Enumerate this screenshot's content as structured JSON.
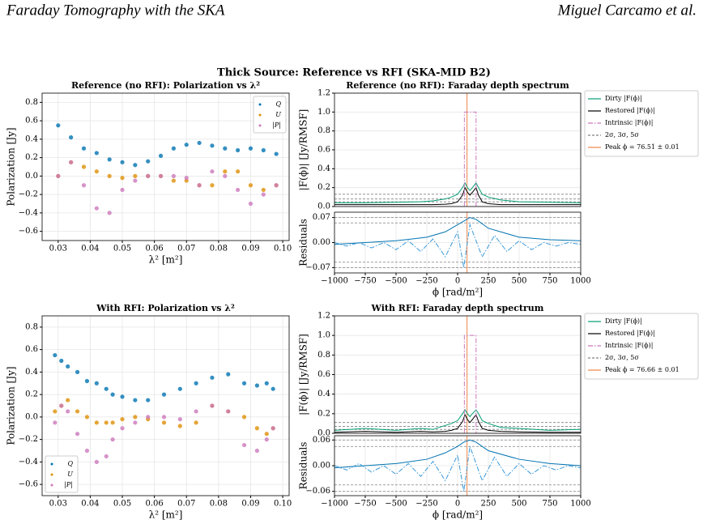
{
  "header": {
    "left": "Faraday Tomography with the SKA",
    "right": "Miguel Carcamo et al."
  },
  "figure_title": "Thick Source: Reference vs RFI (SKA-MID B2)",
  "chart_data": [
    {
      "type": "scatter",
      "title": "Reference (no RFI): Polarization vs λ²",
      "xlabel": "λ² [m²]",
      "ylabel": "Polarization [Jy]",
      "xlim": [
        0.025,
        0.102
      ],
      "ylim": [
        -0.7,
        0.9
      ],
      "xticks": [
        0.03,
        0.04,
        0.05,
        0.06,
        0.07,
        0.08,
        0.09,
        {
          "value": 0.1,
          "label": "0.10"
        }
      ],
      "yticks": [
        {
          "value": -0.6,
          "label": "−0.6"
        },
        {
          "value": -0.4,
          "label": "−0.4"
        },
        {
          "value": -0.2,
          "label": "−0.2"
        },
        {
          "value": 0,
          "label": "0.0"
        },
        0.2,
        0.4,
        0.6,
        0.8
      ],
      "grid": true,
      "legend": "upper right",
      "series": [
        {
          "name": "Q",
          "color": "#0173b2",
          "x": [
            0.03,
            0.034,
            0.038,
            0.042,
            0.046,
            0.05,
            0.054,
            0.058,
            0.062,
            0.066,
            0.07,
            0.074,
            0.078,
            0.082,
            0.086,
            0.09,
            0.094,
            0.098
          ],
          "values": [
            0.55,
            0.42,
            0.3,
            0.25,
            0.18,
            0.15,
            0.12,
            0.16,
            0.22,
            0.3,
            0.34,
            0.36,
            0.33,
            0.3,
            0.28,
            0.3,
            0.28,
            0.24
          ]
        },
        {
          "name": "U",
          "color": "#de8f05",
          "x": [
            0.03,
            0.034,
            0.038,
            0.042,
            0.046,
            0.05,
            0.054,
            0.058,
            0.062,
            0.066,
            0.07,
            0.074,
            0.078,
            0.082,
            0.086,
            0.09,
            0.094,
            0.098
          ],
          "values": [
            0.0,
            0.15,
            0.1,
            0.05,
            0.0,
            -0.02,
            0.0,
            0.0,
            0.0,
            -0.05,
            -0.05,
            -0.1,
            -0.1,
            0.05,
            0.05,
            -0.1,
            -0.15,
            -0.1
          ]
        },
        {
          "name": "|P|",
          "color": "#cc78bc",
          "x": [
            0.03,
            0.034,
            0.038,
            0.042,
            0.046,
            0.05,
            0.054,
            0.058,
            0.062,
            0.066,
            0.07,
            0.074,
            0.078,
            0.082,
            0.086,
            0.09,
            0.094,
            0.098
          ],
          "values": [
            0.0,
            0.15,
            -0.1,
            -0.35,
            -0.4,
            -0.15,
            -0.05,
            0.0,
            0.0,
            0.0,
            -0.02,
            -0.1,
            0.05,
            0.0,
            -0.15,
            -0.3,
            -0.2,
            -0.1
          ]
        }
      ]
    },
    {
      "type": "line",
      "title": "Reference (no RFI): Faraday depth spectrum",
      "ylabel": "|F(ϕ)| [Jy/RMSF]",
      "xlim": [
        -1000,
        1000
      ],
      "ylim": [
        0,
        1.2
      ],
      "yticks": [
        {
          "value": 0,
          "label": "0.0"
        },
        0.2,
        0.4,
        0.6,
        0.8,
        {
          "value": 1,
          "label": "1.0"
        },
        1.2
      ],
      "grid": true,
      "legend": "outside right",
      "series": [
        {
          "name": "Dirty |F(ϕ)|",
          "color": "#029e73",
          "x": [
            -1000,
            -750,
            -500,
            -300,
            -200,
            -100,
            -50,
            0,
            40,
            60,
            80,
            100,
            120,
            150,
            170,
            200,
            250,
            350,
            500,
            750,
            1000
          ],
          "values": [
            0.04,
            0.04,
            0.045,
            0.05,
            0.06,
            0.08,
            0.1,
            0.13,
            0.2,
            0.25,
            0.2,
            0.17,
            0.2,
            0.25,
            0.2,
            0.13,
            0.1,
            0.07,
            0.05,
            0.045,
            0.04
          ]
        },
        {
          "name": "Restored |F(ϕ)|",
          "color": "#000000",
          "x": [
            -1000,
            -750,
            -500,
            -300,
            -200,
            -100,
            -50,
            0,
            40,
            60,
            80,
            100,
            120,
            150,
            170,
            200,
            250,
            350,
            500,
            750,
            1000
          ],
          "values": [
            0.02,
            0.02,
            0.02,
            0.02,
            0.02,
            0.025,
            0.03,
            0.05,
            0.12,
            0.2,
            0.15,
            0.12,
            0.15,
            0.2,
            0.12,
            0.05,
            0.03,
            0.02,
            0.02,
            0.02,
            0.02
          ]
        },
        {
          "name": "Intrinsic |F(ϕ)|",
          "color": "#cc78bc",
          "style": "dashdot",
          "x": [
            -1000,
            55,
            55,
            150,
            150,
            1000
          ],
          "values": [
            0,
            0,
            1,
            1,
            0,
            0
          ]
        }
      ],
      "hlines": {
        "name": "2σ, 3σ, 5σ",
        "color": "#808080",
        "values": [
          0.05,
          0.08,
          0.13
        ]
      },
      "vline": {
        "name": "Peak ϕ = 76.51 ± 0.01",
        "color": "#ee854a",
        "value": 76.51
      }
    },
    {
      "type": "line",
      "xlabel": "ϕ [rad/m²]",
      "ylabel": "Residuals",
      "xlim": [
        -1000,
        1000
      ],
      "ylim": [
        -0.085,
        0.085
      ],
      "xticks": [
        {
          "value": -1000,
          "label": "−1000"
        },
        {
          "value": -750,
          "label": "−750"
        },
        {
          "value": -500,
          "label": "−500"
        },
        {
          "value": -250,
          "label": "−250"
        },
        0,
        250,
        500,
        750,
        1000
      ],
      "yticks": [
        {
          "value": -0.07,
          "label": "−0.07"
        },
        {
          "value": 0,
          "label": "0.00"
        },
        0.07
      ],
      "grid": true,
      "series": [
        {
          "color": "#0173b2",
          "x": [
            -1000,
            -750,
            -500,
            -250,
            -100,
            0,
            50,
            100,
            150,
            250,
            500,
            750,
            1000
          ],
          "values": [
            -0.005,
            0.0,
            0.005,
            0.015,
            0.03,
            0.05,
            0.06,
            0.07,
            0.065,
            0.04,
            0.015,
            0.008,
            0.005
          ]
        },
        {
          "color": "#3a9ad9",
          "style": "dashdot",
          "x": [
            -1000,
            -900,
            -800,
            -700,
            -600,
            -500,
            -400,
            -300,
            -200,
            -100,
            0,
            50,
            100,
            200,
            300,
            400,
            500,
            600,
            700,
            800,
            900,
            1000
          ],
          "values": [
            0,
            -0.01,
            0.0,
            -0.015,
            0.0,
            -0.02,
            0.005,
            -0.025,
            0.01,
            -0.04,
            0.03,
            -0.07,
            0.05,
            -0.04,
            0.02,
            -0.025,
            0.005,
            -0.02,
            0,
            -0.01,
            0,
            -0.005
          ]
        }
      ],
      "hlines": {
        "color": "#808080",
        "values": [
          -0.07,
          -0.055,
          0.055,
          0.07
        ]
      },
      "vline": {
        "color": "#ee854a",
        "value": 76.51
      }
    },
    {
      "type": "scatter",
      "title": "With RFI: Polarization vs λ²",
      "xlabel": "λ² [m²]",
      "ylabel": "Polarization [Jy]",
      "xlim": [
        0.025,
        0.102
      ],
      "ylim": [
        -0.7,
        0.9
      ],
      "xticks": [
        0.03,
        0.04,
        0.05,
        0.06,
        0.07,
        0.08,
        0.09,
        {
          "value": 0.1,
          "label": "0.10"
        }
      ],
      "yticks": [
        {
          "value": -0.6,
          "label": "−0.6"
        },
        {
          "value": -0.4,
          "label": "−0.4"
        },
        {
          "value": -0.2,
          "label": "−0.2"
        },
        {
          "value": 0,
          "label": "0.0"
        },
        0.2,
        0.4,
        0.6,
        0.8
      ],
      "grid": true,
      "legend": "lower left",
      "series": [
        {
          "name": "Q",
          "color": "#0173b2",
          "x": [
            0.029,
            0.031,
            0.033,
            0.036,
            0.039,
            0.042,
            0.045,
            0.047,
            0.05,
            0.054,
            0.058,
            0.063,
            0.068,
            0.073,
            0.078,
            0.083,
            0.088,
            0.092,
            0.095,
            0.097
          ],
          "values": [
            0.55,
            0.5,
            0.45,
            0.4,
            0.32,
            0.3,
            0.25,
            0.2,
            0.18,
            0.15,
            0.15,
            0.2,
            0.25,
            0.3,
            0.35,
            0.38,
            0.3,
            0.28,
            0.3,
            0.25
          ]
        },
        {
          "name": "U",
          "color": "#de8f05",
          "x": [
            0.029,
            0.031,
            0.033,
            0.036,
            0.039,
            0.042,
            0.045,
            0.047,
            0.05,
            0.054,
            0.058,
            0.063,
            0.068,
            0.073,
            0.078,
            0.083,
            0.088,
            0.092,
            0.095,
            0.097
          ],
          "values": [
            0.05,
            0.1,
            0.15,
            0.05,
            0.0,
            -0.05,
            -0.05,
            -0.05,
            -0.02,
            0.0,
            -0.02,
            -0.05,
            -0.08,
            -0.05,
            0.1,
            0.05,
            0.0,
            -0.1,
            -0.15,
            -0.1
          ]
        },
        {
          "name": "|P|",
          "color": "#cc78bc",
          "x": [
            0.029,
            0.031,
            0.033,
            0.036,
            0.039,
            0.042,
            0.045,
            0.047,
            0.05,
            0.054,
            0.058,
            0.063,
            0.068,
            0.073,
            0.078,
            0.083,
            0.088,
            0.092,
            0.095,
            0.097
          ],
          "values": [
            -0.05,
            0.1,
            0.05,
            -0.15,
            -0.3,
            -0.4,
            -0.35,
            -0.2,
            -0.1,
            -0.05,
            0.0,
            0.0,
            -0.02,
            0.05,
            0.1,
            0.05,
            -0.25,
            -0.3,
            -0.2,
            -0.1
          ]
        }
      ]
    },
    {
      "type": "line",
      "title": "With RFI: Faraday depth spectrum",
      "ylabel": "|F(ϕ)| [Jy/RMSF]",
      "xlim": [
        -1000,
        1000
      ],
      "ylim": [
        0,
        1.2
      ],
      "yticks": [
        {
          "value": 0,
          "label": "0.0"
        },
        0.2,
        0.4,
        0.6,
        0.8,
        {
          "value": 1,
          "label": "1.0"
        },
        1.2
      ],
      "grid": true,
      "legend": "outside right",
      "series": [
        {
          "name": "Dirty |F(ϕ)|",
          "color": "#029e73",
          "x": [
            -1000,
            -750,
            -500,
            -300,
            -200,
            -100,
            -50,
            0,
            40,
            60,
            80,
            100,
            120,
            150,
            170,
            200,
            250,
            350,
            500,
            750,
            1000
          ],
          "values": [
            0.03,
            0.05,
            0.03,
            0.05,
            0.04,
            0.08,
            0.1,
            0.13,
            0.2,
            0.24,
            0.2,
            0.17,
            0.2,
            0.24,
            0.2,
            0.13,
            0.1,
            0.06,
            0.05,
            0.03,
            0.04
          ]
        },
        {
          "name": "Restored |F(ϕ)|",
          "color": "#000000",
          "x": [
            -1000,
            -750,
            -500,
            -300,
            -200,
            -100,
            -50,
            0,
            40,
            60,
            80,
            100,
            120,
            150,
            170,
            200,
            250,
            350,
            500,
            750,
            1000
          ],
          "values": [
            0.01,
            0.02,
            0.01,
            0.02,
            0.015,
            0.02,
            0.03,
            0.05,
            0.12,
            0.19,
            0.14,
            0.11,
            0.14,
            0.19,
            0.12,
            0.05,
            0.03,
            0.02,
            0.015,
            0.01,
            0.01
          ]
        },
        {
          "name": "Intrinsic |F(ϕ)|",
          "color": "#cc78bc",
          "style": "dashdot",
          "x": [
            -1000,
            55,
            55,
            150,
            150,
            1000
          ],
          "values": [
            0,
            0,
            1,
            1,
            0,
            0
          ]
        }
      ],
      "hlines": {
        "name": "2σ, 3σ, 5σ",
        "color": "#808080",
        "values": [
          0.04,
          0.07,
          0.11
        ]
      },
      "vline": {
        "name": "Peak ϕ = 76.66 ± 0.01",
        "color": "#ee854a",
        "value": 76.66
      }
    },
    {
      "type": "line",
      "xlabel": "ϕ [rad/m²]",
      "ylabel": "Residuals",
      "xlim": [
        -1000,
        1000
      ],
      "ylim": [
        -0.07,
        0.07
      ],
      "xticks": [
        {
          "value": -1000,
          "label": "−1000"
        },
        {
          "value": -750,
          "label": "−750"
        },
        {
          "value": -500,
          "label": "−500"
        },
        {
          "value": -250,
          "label": "−250"
        },
        0,
        250,
        500,
        750,
        1000
      ],
      "yticks": [
        {
          "value": -0.06,
          "label": "−0.06"
        },
        {
          "value": 0,
          "label": "0.00"
        },
        0.06
      ],
      "grid": true,
      "series": [
        {
          "color": "#0173b2",
          "x": [
            -1000,
            -750,
            -500,
            -250,
            -100,
            0,
            50,
            100,
            150,
            250,
            500,
            750,
            1000
          ],
          "values": [
            -0.005,
            0.0,
            0.005,
            0.015,
            0.03,
            0.045,
            0.055,
            0.06,
            0.055,
            0.035,
            0.015,
            0.005,
            0.0
          ]
        },
        {
          "color": "#3a9ad9",
          "style": "dashdot",
          "x": [
            -1000,
            -900,
            -800,
            -700,
            -600,
            -500,
            -400,
            -300,
            -200,
            -100,
            0,
            50,
            100,
            200,
            300,
            400,
            500,
            600,
            700,
            800,
            900,
            1000
          ],
          "values": [
            0,
            -0.01,
            0.005,
            -0.015,
            0.0,
            -0.02,
            0.005,
            -0.025,
            0.01,
            -0.035,
            0.025,
            -0.06,
            0.045,
            -0.035,
            0.02,
            -0.025,
            0.005,
            -0.02,
            0,
            -0.01,
            0,
            -0.005
          ]
        }
      ],
      "hlines": {
        "color": "#808080",
        "values": [
          -0.06,
          -0.045,
          0.045,
          0.06
        ]
      },
      "vline": {
        "color": "#ee854a",
        "value": 76.66
      }
    }
  ]
}
